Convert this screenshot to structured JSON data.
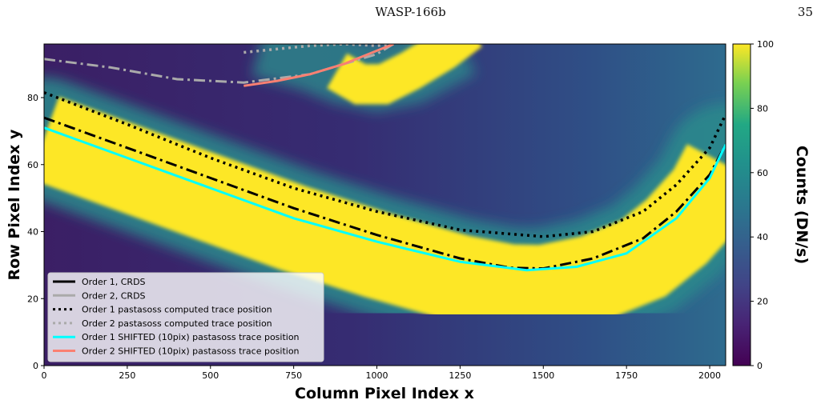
{
  "header": {
    "running_title": "WASP-166b",
    "page_number": "35"
  },
  "colors": {
    "bg_dark": "#3e1f66",
    "bg_mid": "#2d5f8e",
    "bg_green": "#2c8c8c",
    "trace_yellow": "#fde725",
    "order1_crds": "#000000",
    "order2_crds": "#aaaaaa",
    "order1_shifted": "#00ffff",
    "order2_shifted": "#fa8072"
  },
  "chart_data": {
    "type": "heatmap",
    "xlabel": "Column Pixel Index x",
    "ylabel": "Row Pixel Index y",
    "xlim": [
      0,
      2048
    ],
    "ylim": [
      0,
      96
    ],
    "xticks": [
      0,
      250,
      500,
      750,
      1000,
      1250,
      1500,
      1750,
      2000
    ],
    "yticks": [
      0,
      20,
      40,
      60,
      80
    ],
    "colorbar": {
      "label": "Counts (DN/s)",
      "range": [
        0,
        100
      ],
      "ticks": [
        0,
        20,
        40,
        60,
        80,
        100
      ],
      "colormap": "viridis"
    },
    "legend_position": "lower-left",
    "series": [
      {
        "name": "Order 1, CRDS",
        "style": "dashdot",
        "color": "#000000",
        "x": [
          0,
          250,
          500,
          750,
          1000,
          1250,
          1400,
          1500,
          1650,
          1800,
          1900,
          2000,
          2048
        ],
        "y": [
          74,
          65,
          56,
          47,
          39,
          32,
          29.2,
          29,
          32,
          38,
          46,
          57,
          66
        ]
      },
      {
        "name": "Order 2, CRDS",
        "style": "dashdot",
        "color": "#aaaaaa",
        "x": [
          0,
          200,
          400,
          600,
          800,
          1000,
          1050
        ],
        "y": [
          91.5,
          89,
          85.5,
          84.5,
          87,
          93,
          96
        ]
      },
      {
        "name": "Order 1 pastasoss computed trace position",
        "style": "dotted",
        "color": "#000000",
        "x": [
          0,
          250,
          500,
          750,
          1000,
          1250,
          1500,
          1650,
          1800,
          1900,
          2000,
          2048
        ],
        "y": [
          81.5,
          72,
          62,
          53,
          46,
          40.5,
          38.5,
          40,
          46,
          54,
          65,
          75
        ]
      },
      {
        "name": "Order 2 pastasoss computed trace position",
        "style": "dotted",
        "color": "#aaaaaa",
        "x": [
          600,
          700,
          800,
          900,
          1000,
          1050
        ],
        "y": [
          93.5,
          94.5,
          95.5,
          96,
          95.5,
          96
        ]
      },
      {
        "name": "Order 1 SHIFTED (10pix) pastasoss trace position",
        "style": "solid",
        "color": "#00ffff",
        "x": [
          0,
          250,
          500,
          750,
          1000,
          1250,
          1450,
          1600,
          1750,
          1900,
          2000,
          2048
        ],
        "y": [
          71,
          62,
          53,
          44,
          37,
          31,
          28.5,
          29.5,
          33.5,
          44,
          56,
          66
        ]
      },
      {
        "name": "Order 2 SHIFTED (10pix) pastasoss trace position",
        "style": "solid",
        "color": "#fa8072",
        "x": [
          600,
          700,
          800,
          900,
          1000,
          1050
        ],
        "y": [
          83.5,
          85,
          87,
          90,
          94,
          96
        ]
      }
    ]
  }
}
